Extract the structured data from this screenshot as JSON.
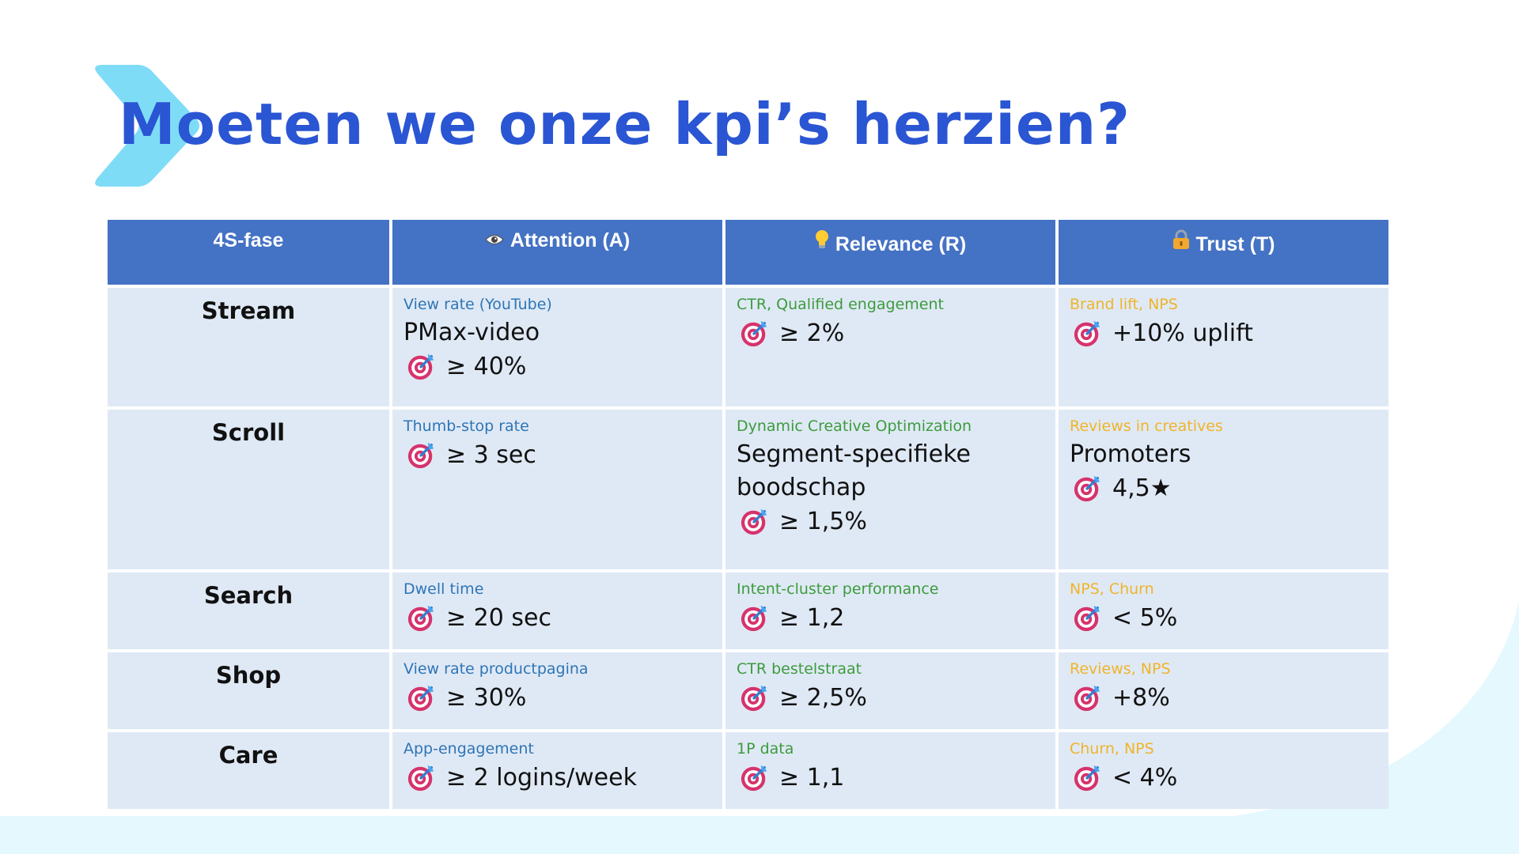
{
  "slide": {
    "title": "Moeten we onze kpi’s herzien?",
    "colors": {
      "title": "#2a55d3",
      "header": "#4472c4",
      "cell": "#dfe9f5",
      "chevron": "#7fdcf7",
      "wave": "#e5f8fd"
    }
  },
  "table": {
    "headers": [
      {
        "label": "4S-fase",
        "icon": ""
      },
      {
        "label": "Attention (A)",
        "icon": "eye-icon"
      },
      {
        "label": "Relevance (R)",
        "icon": "light-bulb-icon"
      },
      {
        "label": "Trust (T)",
        "icon": "lock-icon"
      }
    ],
    "rows": [
      {
        "fase": "Stream",
        "attention": {
          "metric": "View rate (YouTube)",
          "sub": "PMax-video",
          "target": "≥ 40%"
        },
        "relevance": {
          "metric": "CTR, Qualified engagement",
          "sub": "",
          "target": "≥ 2%"
        },
        "trust": {
          "metric": "Brand lift, NPS",
          "sub": "",
          "target": "+10% uplift"
        }
      },
      {
        "fase": "Scroll",
        "attention": {
          "metric": "Thumb-stop rate",
          "sub": "",
          "target": "≥ 3 sec"
        },
        "relevance": {
          "metric": "Dynamic Creative Optimization",
          "sub": "Segment-specifieke boodschap",
          "target": "≥ 1,5%"
        },
        "trust": {
          "metric": "Reviews in creatives",
          "sub": "Promoters",
          "target": "4,5★"
        }
      },
      {
        "fase": "Search",
        "attention": {
          "metric": "Dwell time",
          "sub": "",
          "target": "≥ 20 sec"
        },
        "relevance": {
          "metric": "Intent-cluster performance",
          "sub": "",
          "target": "≥ 1,2"
        },
        "trust": {
          "metric": "NPS, Churn",
          "sub": "",
          "target": "< 5%"
        }
      },
      {
        "fase": "Shop",
        "attention": {
          "metric": "View rate productpagina",
          "sub": "",
          "target": "≥ 30%"
        },
        "relevance": {
          "metric": "CTR bestelstraat",
          "sub": "",
          "target": "≥ 2,5%"
        },
        "trust": {
          "metric": "Reviews, NPS",
          "sub": "",
          "target": "+8%"
        }
      },
      {
        "fase": "Care",
        "attention": {
          "metric": "App-engagement",
          "sub": "",
          "target": "≥ 2 logins/week"
        },
        "relevance": {
          "metric": "1P data",
          "sub": "",
          "target": "≥ 1,1"
        },
        "trust": {
          "metric": "Churn, NPS",
          "sub": "",
          "target": "< 4%"
        }
      }
    ]
  }
}
